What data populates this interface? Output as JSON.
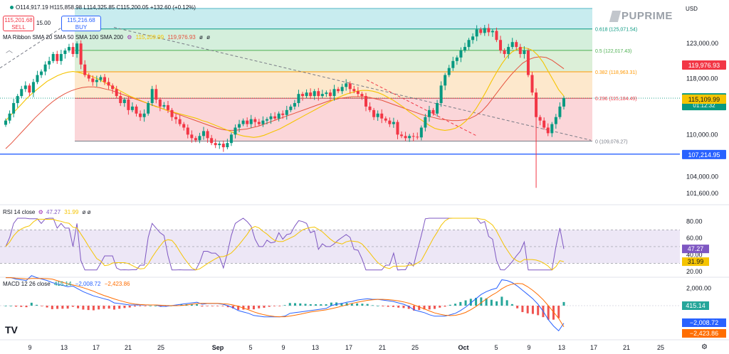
{
  "header": {
    "ohlc": "O114,917.19 H115,858.98 L114,325.85 C115,200.05 +132.60 (+0.12%)",
    "sell_price": "115,201.68",
    "sell_label": "SELL",
    "spread": "15.00",
    "buy_price": "115,216.68",
    "buy_label": "BUY",
    "ma_label": "MA Ribbon SMA 20 SMA 50 SMA 100 SMA 200",
    "ma_values": [
      "115,109.99",
      "119,976.93",
      "ø",
      "ø"
    ],
    "currency": "USD",
    "brand": "PUPRIME"
  },
  "chart_data": [
    {
      "type": "candlestick",
      "title": "",
      "y_ticks": [
        123000,
        118000,
        115000,
        110000,
        107000,
        104000,
        101600
      ],
      "ylim": [
        100300,
        129000
      ],
      "x_ticks": [
        "9",
        "13",
        "17",
        "21",
        "25",
        "Sep",
        "5",
        "9",
        "13",
        "17",
        "21",
        "25",
        "Oct",
        "5",
        "9",
        "13",
        "17",
        "21",
        "25"
      ],
      "last_close": 115200.05,
      "low_wick": 102400,
      "price_labels": [
        {
          "text": "119,976.93",
          "value": 119976.93,
          "color": "#f23645"
        },
        {
          "text": "115,200.05",
          "sub": "01:12:32",
          "value": 115200.05,
          "color": "#089981"
        },
        {
          "text": "115,109.99",
          "value": 115109.99,
          "color": "#f5c400"
        },
        {
          "text": "107,214.95",
          "value": 107214.95,
          "color": "#2962ff"
        }
      ],
      "fib_levels": [
        {
          "ratio": "0.618",
          "label": "0.618 (125,071.54)",
          "value": 125071.54,
          "color": "#089981"
        },
        {
          "ratio": "0.5",
          "label": "0.5 (122,017.43)",
          "value": 122017.43,
          "color": "#4caf50"
        },
        {
          "ratio": "0.382",
          "label": "0.382 (118,963.31)",
          "value": 118963.31,
          "color": "#ff9800"
        },
        {
          "ratio": "0.236",
          "label": "0.236 (115,184.49)",
          "value": 115184.49,
          "color": "#f23645"
        },
        {
          "ratio": "0",
          "label": "0 (109,076.27)",
          "value": 109076.27,
          "color": "#787b86"
        }
      ],
      "fib_top": 128000,
      "support_line": 107214.95,
      "closes": [
        112000,
        113000,
        114500,
        115500,
        116500,
        117000,
        116000,
        117500,
        118500,
        119000,
        120000,
        120500,
        121500,
        120500,
        121500,
        122000,
        122500,
        121500,
        123000,
        120000,
        118500,
        118000,
        117500,
        117800,
        118200,
        117500,
        117000,
        116500,
        115500,
        114500,
        115000,
        113500,
        114000,
        113000,
        112500,
        113000,
        114500,
        116500,
        115000,
        114000,
        114200,
        113500,
        112500,
        112200,
        111500,
        111000,
        110000,
        109500,
        109200,
        109800,
        110500,
        109500,
        108800,
        108500,
        108700,
        108200,
        108800,
        110000,
        111000,
        111500,
        112000,
        111500,
        112200,
        111800,
        111500,
        112000,
        112200,
        112600,
        112300,
        113000,
        112800,
        113500,
        114000,
        114500,
        115800,
        115500,
        116000,
        115500,
        116200,
        115500,
        115800,
        116000,
        115500,
        116500,
        116200,
        116800,
        117300,
        116500,
        116200,
        115800,
        115500,
        114000,
        113500,
        112500,
        113000,
        112300,
        112000,
        111500,
        111800,
        110000,
        109800,
        109500,
        109800,
        109700,
        109600,
        111000,
        112500,
        113500,
        113000,
        114500,
        117000,
        118500,
        119500,
        120500,
        121000,
        122000,
        122500,
        123500,
        124000,
        125000,
        124500,
        125200,
        124600,
        124800,
        123500,
        122000,
        121500,
        122500,
        123200,
        122500,
        121500,
        122000,
        118500,
        116000,
        112500,
        112000,
        111000,
        110200,
        111500,
        112500,
        114000,
        115200
      ],
      "sma20": [
        112000,
        112800,
        113500,
        114300,
        115100,
        115800,
        116400,
        117000,
        117600,
        118000,
        118400,
        118700,
        118900,
        119000,
        118900,
        118700,
        118500,
        118200,
        117900,
        117500,
        117100,
        116700,
        116300,
        115900,
        115500,
        115200,
        114900,
        114600,
        114300,
        114000,
        113800,
        113500,
        113300,
        113100,
        112900,
        112700,
        112500,
        112300,
        112000,
        111800,
        111500,
        111200,
        110900,
        110600,
        110300,
        110000,
        109800,
        109700,
        109600,
        109700,
        109900,
        110200,
        110500,
        110800,
        111200,
        111600,
        112000,
        112400,
        112800,
        113200,
        113600,
        114000,
        114400,
        114800,
        115200,
        115500,
        115800,
        116000,
        116200,
        116300,
        116300,
        116200,
        116000,
        115700,
        115300,
        114900,
        114400,
        113900,
        113300,
        112800,
        112300,
        111800,
        111300,
        110900,
        110700,
        110600,
        110700,
        110900,
        111300,
        111900,
        112700,
        113700,
        114900,
        116200,
        117600,
        118900,
        120100,
        121100,
        121800,
        122200,
        122400,
        122300,
        122000,
        121300,
        120300,
        119000,
        117700,
        116400,
        115500
      ],
      "sma50": [
        108000,
        108800,
        109700,
        110600,
        111500,
        112400,
        113200,
        114000,
        114700,
        115300,
        115800,
        116200,
        116500,
        116700,
        116800,
        116800,
        116700,
        116500,
        116300,
        116000,
        115700,
        115400,
        115100,
        114800,
        114500,
        114200,
        113900,
        113600,
        113300,
        113000,
        112700,
        112400,
        112100,
        111800,
        111500,
        111200,
        110900,
        110700,
        110600,
        110600,
        110700,
        110800,
        111000,
        111200,
        111500,
        111800,
        112100,
        112400,
        112700,
        113000,
        113300,
        113600,
        113900,
        114200,
        114500,
        114800,
        115000,
        115200,
        115300,
        115400,
        115400,
        115400,
        115300,
        115100,
        114900,
        114600,
        114300,
        114000,
        113700,
        113400,
        113100,
        112800,
        112600,
        112400,
        112200,
        112100,
        112000,
        112000,
        112100,
        112300,
        112700,
        113300,
        114200,
        115300,
        116400,
        117500,
        118500,
        119400,
        120200,
        120700,
        121000,
        121100,
        121000,
        120600,
        120000,
        119400
      ],
      "rsi": {
        "label": "RSI 14 close",
        "values_text": [
          "47.27",
          "31.99"
        ],
        "ticks": [
          80,
          60,
          40,
          20
        ],
        "upper": 70,
        "mid": 50,
        "lower": 30,
        "last": 47.27,
        "ma": 31.99
      },
      "macd": {
        "label": "MACD 12 26 close",
        "values_text": [
          "415.14",
          "−2,008.72",
          "−2,423.86"
        ],
        "ticks": [
          "2,000.00"
        ],
        "hist_last": 415.14,
        "macd_last": -2008.72,
        "signal_last": -2423.86
      }
    }
  ]
}
